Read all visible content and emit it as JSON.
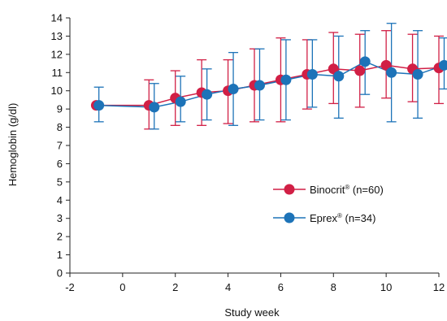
{
  "chart_data": {
    "type": "line",
    "xlabel": "Study week",
    "ylabel": "Hemoglobin (g/dl)",
    "xlim": [
      -2,
      12
    ],
    "ylim": [
      0,
      14
    ],
    "x_ticks": [
      "-2",
      "0",
      "2",
      "4",
      "6",
      "8",
      "10",
      "12"
    ],
    "y_ticks": [
      "0",
      "1",
      "2",
      "3",
      "4",
      "5",
      "6",
      "7",
      "8",
      "9",
      "10",
      "11",
      "12",
      "13",
      "14"
    ],
    "grid": false,
    "legend_position": "lower-right",
    "series": [
      {
        "name": "Binocrit",
        "name_mark": "®",
        "name_suffix": " (n=60)",
        "color": "#d11f45",
        "x": [
          -1,
          1,
          2,
          3,
          4,
          5,
          6,
          7,
          8,
          9,
          10,
          11,
          12
        ],
        "values": [
          9.2,
          9.2,
          9.6,
          9.9,
          10.0,
          10.3,
          10.6,
          10.9,
          11.2,
          11.1,
          11.4,
          11.2,
          11.25
        ],
        "error_low": [
          null,
          7.9,
          8.1,
          8.1,
          8.2,
          8.3,
          8.3,
          9.0,
          9.3,
          9.1,
          9.6,
          9.4,
          9.3
        ],
        "error_high": [
          null,
          10.6,
          11.1,
          11.7,
          11.7,
          12.3,
          12.9,
          12.8,
          13.2,
          13.1,
          13.3,
          13.1,
          13.0
        ]
      },
      {
        "name": "Eprex",
        "name_mark": "®",
        "name_suffix": " (n=34)",
        "color": "#1d73b8",
        "x": [
          -0.9,
          1.2,
          2.2,
          3.2,
          4.2,
          5.2,
          6.2,
          7.2,
          8.2,
          9.2,
          10.2,
          11.2,
          12.2
        ],
        "values": [
          9.2,
          9.1,
          9.4,
          9.8,
          10.1,
          10.3,
          10.6,
          10.9,
          10.8,
          11.6,
          11.0,
          10.9,
          11.4
        ],
        "error_low": [
          8.3,
          7.9,
          8.3,
          8.4,
          8.1,
          8.4,
          8.4,
          9.1,
          8.5,
          9.8,
          8.3,
          8.5,
          10.1
        ],
        "error_high": [
          10.2,
          10.4,
          10.8,
          11.2,
          12.1,
          12.3,
          12.8,
          12.8,
          13.0,
          13.3,
          13.7,
          13.3,
          12.9
        ]
      }
    ]
  }
}
